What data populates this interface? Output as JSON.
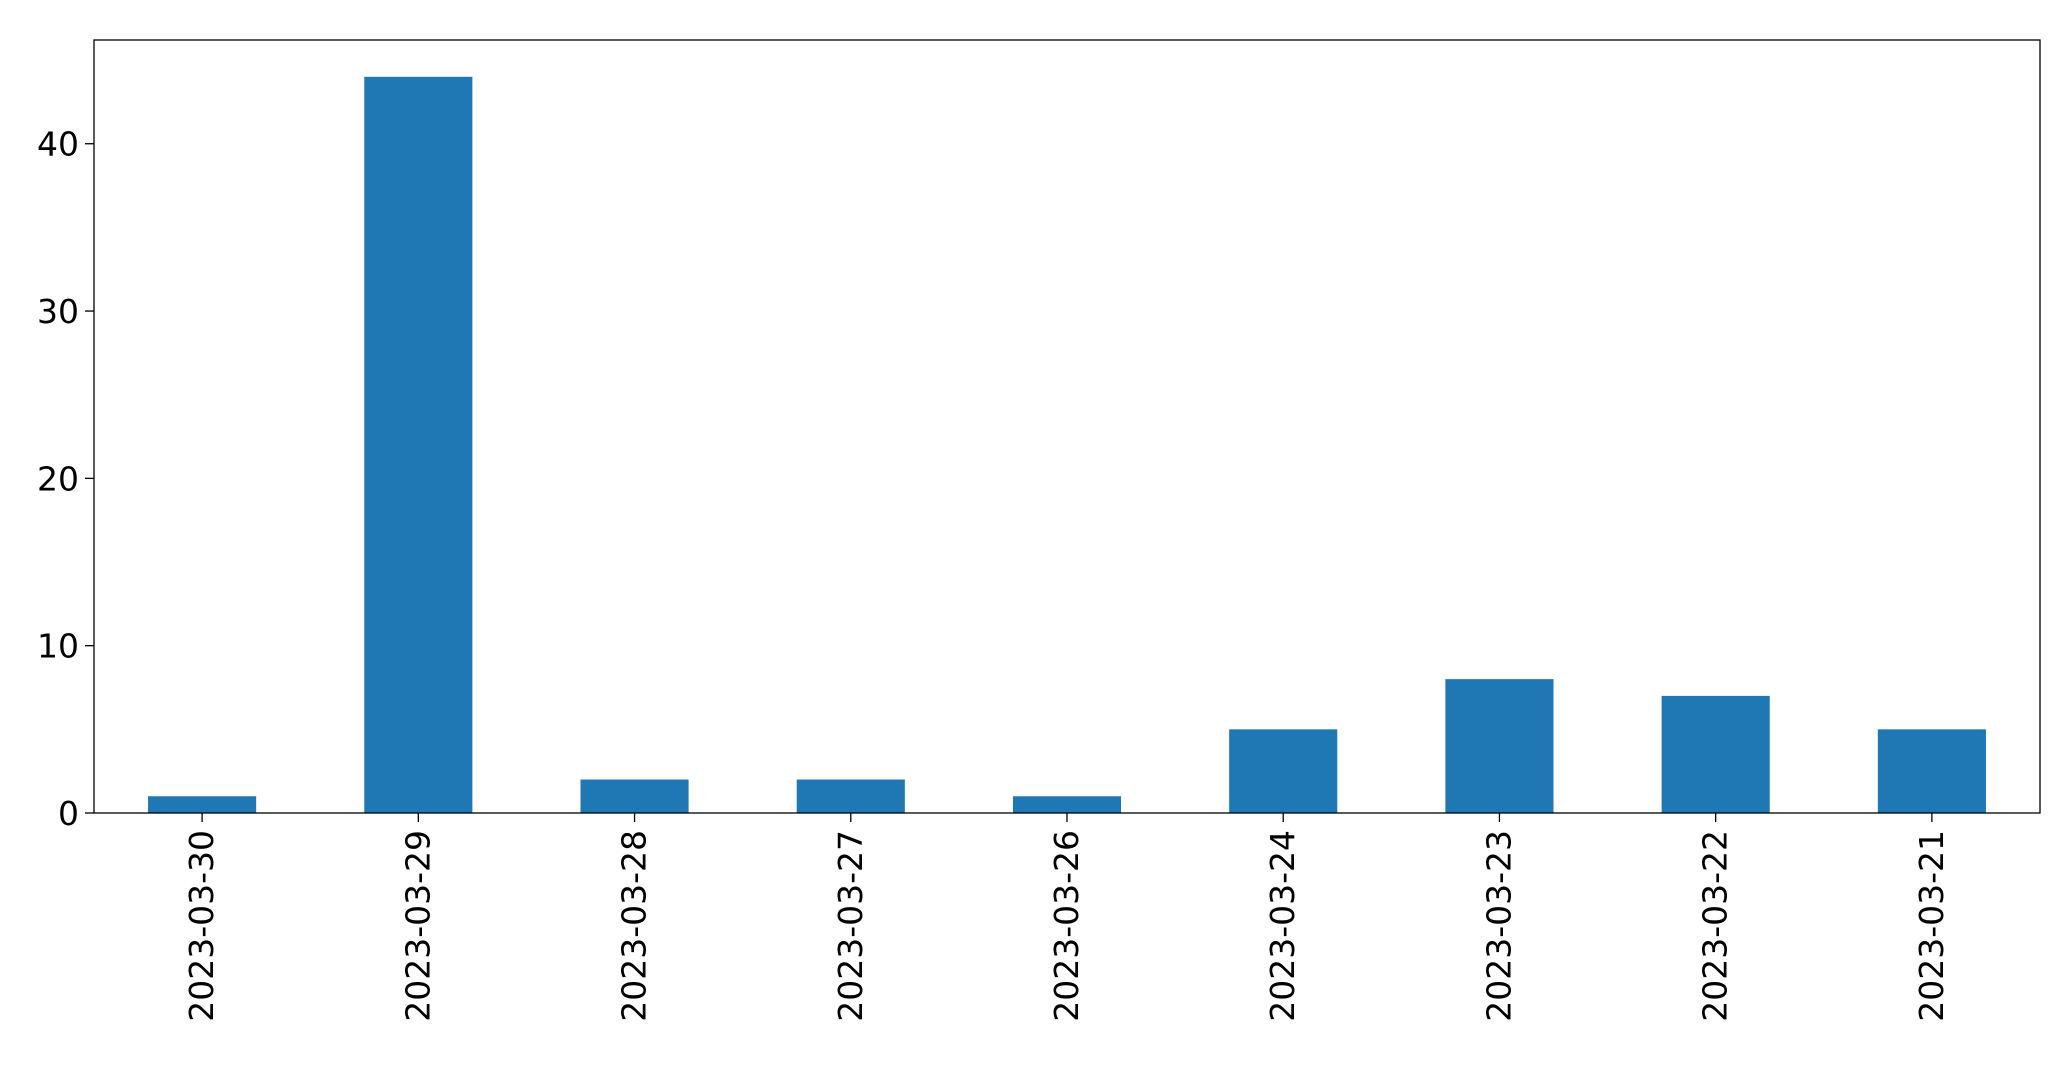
{
  "chart_data": {
    "type": "bar",
    "categories": [
      "2023-03-30",
      "2023-03-29",
      "2023-03-28",
      "2023-03-27",
      "2023-03-26",
      "2023-03-24",
      "2023-03-23",
      "2023-03-22",
      "2023-03-21"
    ],
    "values": [
      1,
      44,
      2,
      2,
      1,
      5,
      8,
      7,
      5
    ],
    "title": "",
    "xlabel": "",
    "ylabel": "",
    "ylim": [
      0,
      46.2
    ],
    "yticks": [
      0,
      10,
      20,
      30,
      40
    ],
    "grid": false,
    "legend": "none",
    "bar_color": "#1f77b4"
  }
}
